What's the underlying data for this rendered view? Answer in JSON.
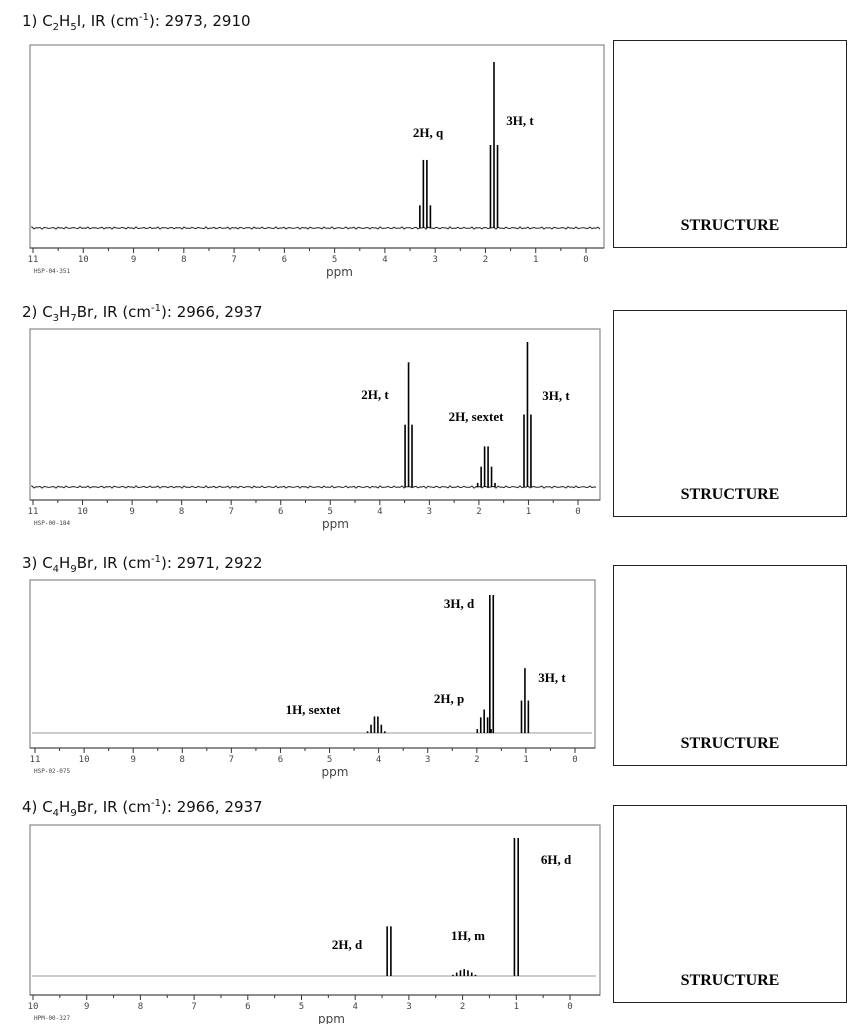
{
  "problems": [
    {
      "number": "1)",
      "formula": "C2H5I",
      "formula_parts": [
        "C",
        "2",
        "H",
        "5",
        "I"
      ],
      "ir_label": "IR (cm",
      "ir_sup": "-1",
      "ir_values": "): 2973, 2910",
      "structure_label": "STRUCTURE"
    },
    {
      "number": "2)",
      "formula": "C3H7Br",
      "formula_parts": [
        "C",
        "3",
        "H",
        "7",
        "Br"
      ],
      "ir_label": "IR (cm",
      "ir_sup": "-1",
      "ir_values": "): 2966, 2937",
      "structure_label": "STRUCTURE"
    },
    {
      "number": "3)",
      "formula": "C4H9Br",
      "formula_parts": [
        "C",
        "4",
        "H",
        "9",
        "Br"
      ],
      "ir_label": "IR (cm",
      "ir_sup": "-1",
      "ir_values": "): 2971, 2922",
      "structure_label": "STRUCTURE"
    },
    {
      "number": "4)",
      "formula": "C4H9Br",
      "formula_parts": [
        "C",
        "4",
        "H",
        "9",
        "Br"
      ],
      "ir_label": "IR (cm",
      "ir_sup": "-1",
      "ir_values": "): 2966, 2937",
      "structure_label": "STRUCTURE"
    }
  ],
  "chart_data": [
    {
      "type": "line",
      "xlabel": "ppm",
      "code": "HSP-04-351",
      "xlim": [
        11,
        0
      ],
      "xticks": [
        11,
        10,
        9,
        8,
        7,
        6,
        5,
        4,
        3,
        2,
        1,
        0
      ],
      "peaks": [
        {
          "ppm": 3.2,
          "mult": "q",
          "label": "2H, q",
          "height": 0.41
        },
        {
          "ppm": 1.83,
          "mult": "t",
          "label": "3H, t",
          "height": 1.0
        }
      ]
    },
    {
      "type": "line",
      "xlabel": "ppm",
      "code": "HSP-00-184",
      "xlim": [
        11,
        0
      ],
      "xticks": [
        11,
        10,
        9,
        8,
        7,
        6,
        5,
        4,
        3,
        2,
        1,
        0
      ],
      "peaks": [
        {
          "ppm": 3.42,
          "mult": "t",
          "label": "2H, t",
          "height": 0.86
        },
        {
          "ppm": 1.85,
          "mult": "sextet",
          "label": "2H, sextet",
          "height": 0.28
        },
        {
          "ppm": 1.02,
          "mult": "t",
          "label": "3H, t",
          "height": 1.0
        }
      ]
    },
    {
      "type": "line",
      "xlabel": "ppm",
      "code": "HSP-02-075",
      "xlim": [
        11,
        0
      ],
      "xticks": [
        11,
        10,
        9,
        8,
        7,
        6,
        5,
        4,
        3,
        2,
        1,
        0
      ],
      "peaks": [
        {
          "ppm": 4.05,
          "mult": "sextet",
          "label": "1H, sextet",
          "height": 0.12
        },
        {
          "ppm": 1.85,
          "mult": "p",
          "label": "2H, p",
          "height": 0.17
        },
        {
          "ppm": 1.7,
          "mult": "d",
          "label": "3H, d",
          "height": 1.0
        },
        {
          "ppm": 1.02,
          "mult": "t",
          "label": "3H, t",
          "height": 0.47
        }
      ]
    },
    {
      "type": "line",
      "xlabel": "ppm",
      "code": "HPM-00-327",
      "xlim": [
        10,
        0
      ],
      "xticks": [
        10,
        9,
        8,
        7,
        6,
        5,
        4,
        3,
        2,
        1,
        0
      ],
      "peaks": [
        {
          "ppm": 3.37,
          "mult": "d",
          "label": "2H, d",
          "height": 0.36
        },
        {
          "ppm": 1.97,
          "mult": "m",
          "label": "1H, m",
          "height": 0.05
        },
        {
          "ppm": 1.0,
          "mult": "d",
          "label": "6H, d",
          "height": 1.0
        }
      ]
    }
  ]
}
